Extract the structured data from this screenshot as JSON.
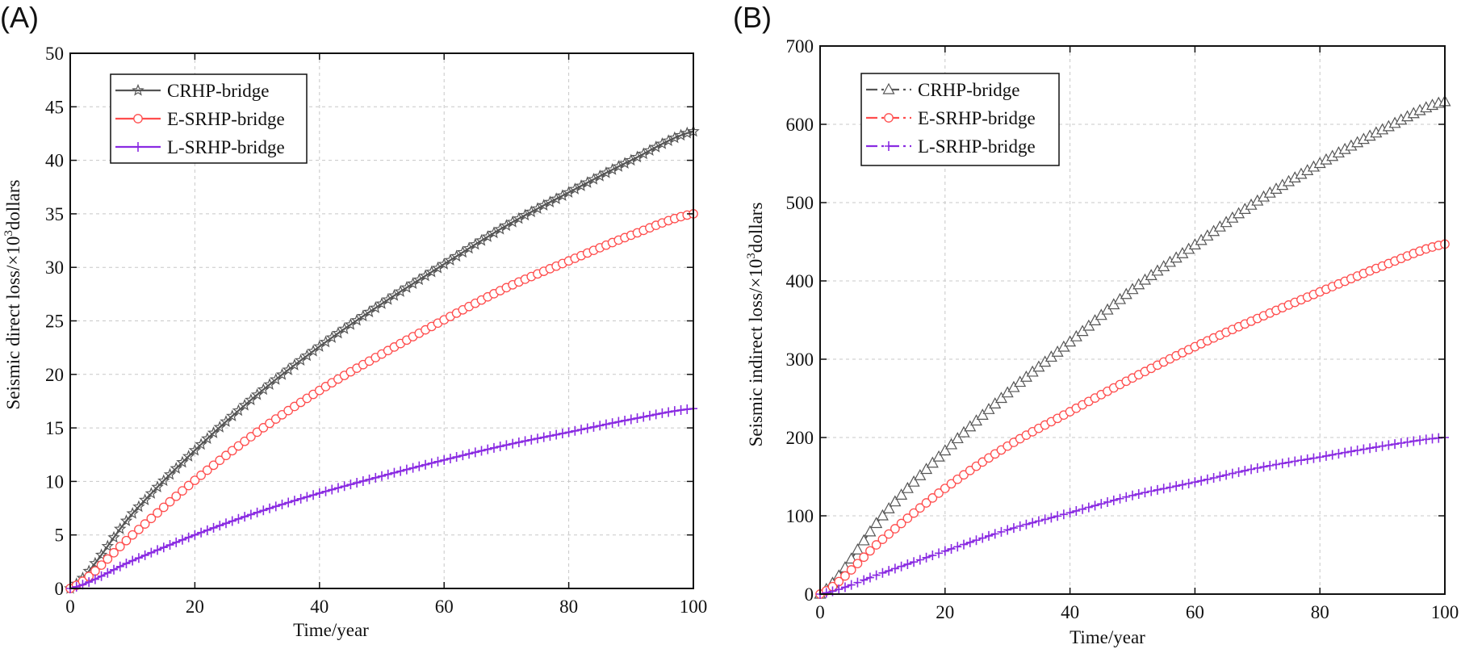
{
  "chart_data": [
    {
      "panel_label": "(A)",
      "type": "line",
      "xlabel": "Time/year",
      "ylabel_prefix": "Seismic direct loss/×10",
      "ylabel_sup": "3",
      "ylabel_suffix": "dollars",
      "xlim": [
        0,
        100
      ],
      "ylim": [
        0,
        50
      ],
      "xticks": [
        "0",
        "20",
        "40",
        "60",
        "80",
        "100"
      ],
      "yticks": [
        "0",
        "5",
        "10",
        "15",
        "20",
        "25",
        "30",
        "35",
        "40",
        "45",
        "50"
      ],
      "grid": true,
      "legend_position": "top-left",
      "x": [
        0,
        10,
        20,
        30,
        40,
        50,
        60,
        70,
        80,
        90,
        100
      ],
      "series": [
        {
          "name": "CRHP-bridge",
          "color": "#555555",
          "marker": "star",
          "line": "solid",
          "values": [
            0,
            7.0,
            12.9,
            18.1,
            22.6,
            26.6,
            30.3,
            33.9,
            37.0,
            40.0,
            42.7
          ]
        },
        {
          "name": "E-SRHP-bridge",
          "color": "#ff4d4d",
          "marker": "circle",
          "line": "solid",
          "values": [
            0,
            5.0,
            10.1,
            14.6,
            18.5,
            21.9,
            25.1,
            28.1,
            30.6,
            33.0,
            35.0
          ]
        },
        {
          "name": "L-SRHP-bridge",
          "color": "#8a2be2",
          "marker": "plus",
          "line": "solid",
          "values": [
            0,
            2.6,
            5.0,
            7.1,
            8.9,
            10.5,
            12.0,
            13.4,
            14.6,
            15.8,
            16.8
          ]
        }
      ]
    },
    {
      "panel_label": "(B)",
      "type": "line",
      "xlabel": "Time/year",
      "ylabel_prefix": "Seismic indirect loss/×10",
      "ylabel_sup": "3",
      "ylabel_suffix": "dollars",
      "xlim": [
        0,
        100
      ],
      "ylim": [
        0,
        700
      ],
      "xticks": [
        "0",
        "20",
        "40",
        "60",
        "80",
        "100"
      ],
      "yticks": [
        "0",
        "100",
        "200",
        "300",
        "400",
        "500",
        "600",
        "700"
      ],
      "grid": true,
      "legend_position": "top-left",
      "x": [
        0,
        10,
        20,
        30,
        40,
        50,
        60,
        70,
        80,
        90,
        100
      ],
      "series": [
        {
          "name": "CRHP-bridge",
          "color": "#555555",
          "marker": "triangle",
          "line": "dash-dot",
          "values": [
            0,
            100,
            183,
            257,
            322,
            389,
            446,
            502,
            550,
            593,
            629
          ]
        },
        {
          "name": "E-SRHP-bridge",
          "color": "#ff4d4d",
          "marker": "circle",
          "line": "dash-dot",
          "values": [
            0,
            70,
            135,
            189,
            233,
            276,
            316,
            352,
            386,
            419,
            447
          ]
        },
        {
          "name": "L-SRHP-bridge",
          "color": "#8a2be2",
          "marker": "plus",
          "line": "dash-dot",
          "values": [
            0,
            27,
            55,
            82,
            104,
            126,
            143,
            161,
            175,
            189,
            200
          ]
        }
      ]
    }
  ]
}
